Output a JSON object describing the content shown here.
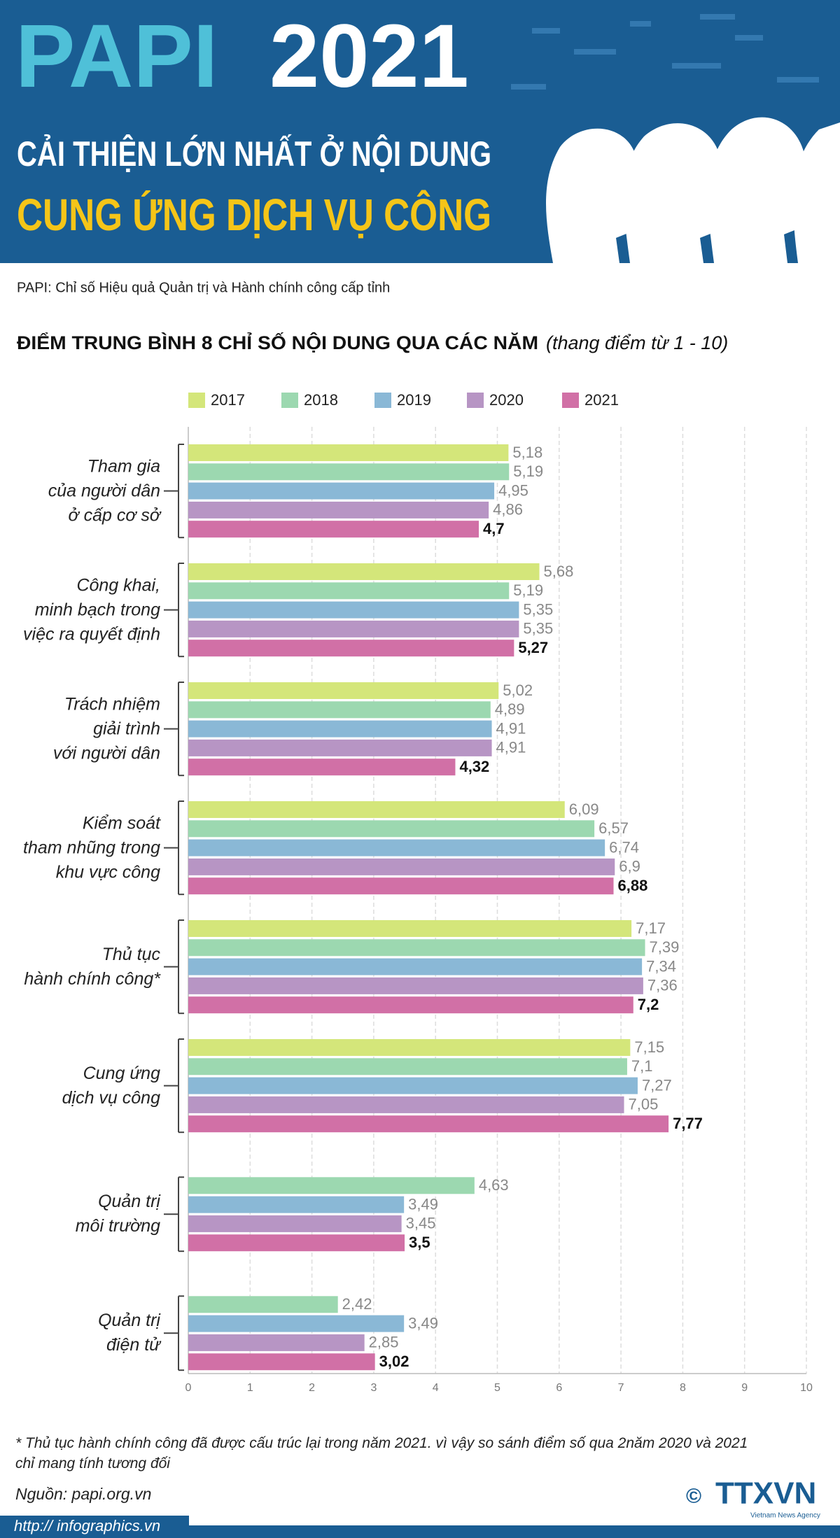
{
  "header": {
    "title_1": "PAPI",
    "title_2": "2021",
    "headline_1": "CẢI THIỆN LỚN NHẤT Ở NỘI DUNG",
    "headline_2": "CUNG ỨNG DỊCH VỤ CÔNG"
  },
  "description": "PAPI: Chỉ số Hiệu quả Quản trị và Hành chính công cấp tỉnh",
  "chart_data": {
    "type": "bar",
    "orientation": "horizontal",
    "title": "ĐIỂM TRUNG BÌNH 8 CHỈ SỐ NỘI DUNG QUA CÁC NĂM",
    "subtitle": "(thang điểm từ 1 - 10)",
    "categories": [
      "Tham gia\ncủa người dân\nở cấp cơ sở",
      "Công khai,\nminh bạch trong\nviệc ra quyết định",
      "Trách nhiệm\ngiải trình\nvới người dân",
      "Kiểm soát\ntham nhũng trong\nkhu vực công",
      "Thủ tục\nhành chính công*",
      "Cung ứng\ndịch vụ công",
      "Quản trị\nmôi trường",
      "Quản trị\nđiện tử"
    ],
    "series": [
      {
        "name": "2017",
        "color": "#d4e67a",
        "values": [
          5.18,
          5.68,
          5.02,
          6.09,
          7.17,
          7.15,
          null,
          null
        ],
        "value_labels": [
          "5,18",
          "5,68",
          "5,02",
          "6,09",
          "7,17",
          "7,15",
          null,
          null
        ]
      },
      {
        "name": "2018",
        "color": "#9cd8b0",
        "values": [
          5.19,
          5.19,
          4.89,
          6.57,
          7.39,
          7.1,
          4.63,
          2.42
        ],
        "value_labels": [
          "5,19",
          "5,19",
          "4,89",
          "6,57",
          "7,39",
          "7,1",
          "4,63",
          "2,42"
        ]
      },
      {
        "name": "2019",
        "color": "#8ab8d6",
        "values": [
          4.95,
          5.35,
          4.91,
          6.74,
          7.34,
          7.27,
          3.49,
          3.49
        ],
        "value_labels": [
          "4,95",
          "5,35",
          "4,91",
          "6,74",
          "7,34",
          "7,27",
          "3,49",
          "3,49"
        ]
      },
      {
        "name": "2020",
        "color": "#b795c4",
        "values": [
          4.86,
          5.35,
          4.91,
          6.9,
          7.36,
          7.05,
          3.45,
          2.85
        ],
        "value_labels": [
          "4,86",
          "5,35",
          "4,91",
          "6,9",
          "7,36",
          "7,05",
          "3,45",
          "2,85"
        ]
      },
      {
        "name": "2021",
        "color": "#d170a6",
        "values": [
          4.7,
          5.27,
          4.32,
          6.88,
          7.2,
          7.77,
          3.5,
          3.02
        ],
        "value_labels": [
          "4,7",
          "5,27",
          "4,32",
          "6,88",
          "7,2",
          "7,77",
          "3,5",
          "3,02"
        ]
      }
    ],
    "xlim": [
      0,
      10
    ],
    "xticks": [
      0,
      1,
      2,
      3,
      4,
      5,
      6,
      7,
      8,
      9,
      10
    ],
    "grid": true,
    "legend": "top"
  },
  "footnote": "* Thủ tục hành chính công đã được cấu trúc lại trong năm 2021. vì vậy so sánh điểm số qua 2năm 2020 và 2021 chỉ mang tính tương đối",
  "source": "Nguồn: papi.org.vn",
  "website": "http:// infographics.vn",
  "logo": {
    "symbol": "©",
    "name": "TTXVN",
    "tagline": "Vietnam News Agency"
  }
}
